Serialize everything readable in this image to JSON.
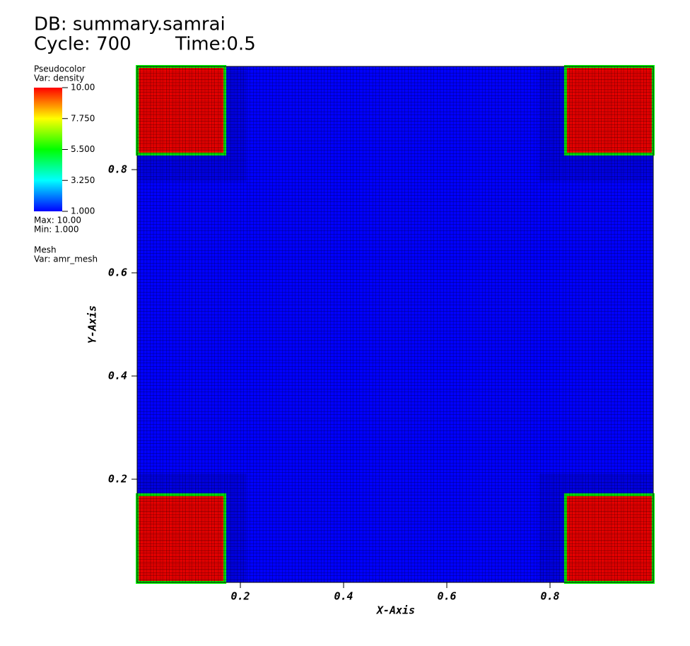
{
  "chart_data": {
    "type": "pseudocolor",
    "database": "DB: summary.samrai",
    "cycle": "Cycle: 700",
    "time": "Time:0.5",
    "plot_label": "Pseudocolor",
    "variable": "Var: density",
    "max_label": "Max:  10.00",
    "min_label": "Min:  1.000",
    "mesh_label": "Mesh",
    "mesh_variable": "Var: amr_mesh",
    "xlabel": "X-Axis",
    "ylabel": "Y-Axis",
    "xlim": [
      0,
      1
    ],
    "ylim": [
      0,
      1
    ],
    "xticks": [
      0.2,
      0.4,
      0.6,
      0.8
    ],
    "yticks": [
      0.2,
      0.4,
      0.6,
      0.8
    ],
    "colorbar_lim": [
      1,
      10
    ],
    "colorbar_ticks": [
      {
        "value": 10,
        "label": "10.00"
      },
      {
        "value": 7.75,
        "label": "7.750"
      },
      {
        "value": 5.5,
        "label": "5.500"
      },
      {
        "value": 3.25,
        "label": "3.250"
      },
      {
        "value": 1,
        "label": "1.000"
      }
    ],
    "background_value": 1,
    "regions": [
      {
        "x": [
          0,
          0.17
        ],
        "y": [
          0.83,
          1
        ],
        "value": 10
      },
      {
        "x": [
          0.83,
          1
        ],
        "y": [
          0.83,
          1
        ],
        "value": 10
      },
      {
        "x": [
          0,
          0.17
        ],
        "y": [
          0,
          0.17
        ],
        "value": 10
      },
      {
        "x": [
          0.83,
          1
        ],
        "y": [
          0,
          0.17
        ],
        "value": 10
      }
    ],
    "refined_regions": [
      {
        "x": [
          0,
          0.212
        ],
        "y": [
          0.777,
          1
        ]
      },
      {
        "x": [
          0.778,
          1
        ],
        "y": [
          0.777,
          1
        ]
      },
      {
        "x": [
          0,
          0.212
        ],
        "y": [
          0,
          0.212
        ]
      },
      {
        "x": [
          0.778,
          1
        ],
        "y": [
          0,
          0.212
        ]
      }
    ]
  }
}
